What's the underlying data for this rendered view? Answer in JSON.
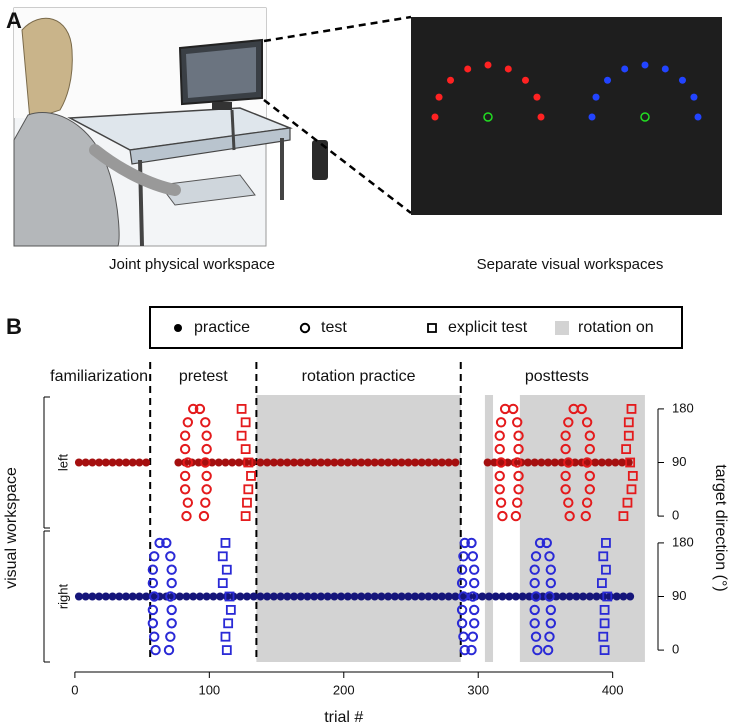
{
  "panel_a": {
    "label": "A",
    "left_caption": "Joint physical workspace",
    "right_caption": "Separate visual workspaces"
  },
  "chart_data": {
    "type": "scatter",
    "panel_label": "B",
    "xlabel": "trial #",
    "xlim": [
      -20,
      430
    ],
    "xticks": [
      0,
      100,
      200,
      300,
      400
    ],
    "ylabel_left": "visual workspace",
    "ylabel_right": "target direction (°)",
    "legend": [
      {
        "name": "practice",
        "marker": "dot"
      },
      {
        "name": "test",
        "marker": "circle"
      },
      {
        "name": "explicit test",
        "marker": "square"
      },
      {
        "name": "rotation on",
        "marker": "shade"
      }
    ],
    "shade_color": "#d3d3d3",
    "phases": [
      "familiarization",
      "pretest",
      "rotation practice",
      "posttests"
    ],
    "phase_dividers": [
      56,
      135,
      287
    ],
    "rotation_on": [
      [
        135,
        287
      ],
      [
        305,
        311
      ],
      [
        331,
        424
      ]
    ],
    "panels": [
      {
        "label": "left",
        "ylim": [
          -20,
          200
        ],
        "yticks": [
          0,
          90,
          180
        ],
        "series": [
          {
            "color": "#a50f0f",
            "x": [
              3,
              8,
              13,
              18,
              23,
              28,
              33,
              38,
              43,
              48,
              53,
              77,
              82,
              87,
              92,
              97,
              102,
              107,
              112,
              117,
              122,
              127,
              132,
              138,
              143,
              148,
              153,
              158,
              163,
              168,
              173,
              178,
              183,
              188,
              193,
              198,
              203,
              208,
              213,
              218,
              223,
              228,
              233,
              238,
              243,
              248,
              253,
              258,
              263,
              268,
              273,
              278,
              283,
              307,
              312,
              317,
              322,
              327,
              332,
              337,
              342,
              347,
              352,
              357,
              362,
              367,
              372,
              377,
              382,
              387,
              392,
              397,
              402,
              407,
              412
            ],
            "values": [
              90,
              90,
              90,
              90,
              90,
              90,
              90,
              90,
              90,
              90,
              90,
              90,
              90,
              90,
              90,
              90,
              90,
              90,
              90,
              90,
              90,
              90,
              90,
              90,
              90,
              90,
              90,
              90,
              90,
              90,
              90,
              90,
              90,
              90,
              90,
              90,
              90,
              90,
              90,
              90,
              90,
              90,
              90,
              90,
              90,
              90,
              90,
              90,
              90,
              90,
              90,
              90,
              90,
              90,
              90,
              90,
              90,
              90,
              90,
              90,
              90,
              90,
              90,
              90,
              90,
              90,
              90,
              90,
              90,
              90,
              90,
              90,
              90,
              90,
              90
            ]
          },
          {
            "color": "#e41a1c",
            "x": [
              88,
              93,
              84,
              97,
              82,
              98,
              82,
              98,
              84,
              97,
              82,
              98,
              82,
              98,
              84,
              97,
              83,
              96,
              320,
              326,
              317,
              329,
              316,
              330,
              316,
              330,
              317,
              329,
              316,
              330,
              316,
              330,
              317,
              329,
              318,
              328,
              371,
              377,
              367,
              381,
              365,
              383,
              365,
              383,
              367,
              381,
              365,
              383,
              365,
              383,
              367,
              381,
              368,
              380
            ],
            "values": [
              180,
              180,
              157.5,
              157.5,
              135,
              135,
              112.5,
              112.5,
              90,
              90,
              67.5,
              67.5,
              45,
              45,
              22.5,
              22.5,
              0,
              0,
              180,
              180,
              157.5,
              157.5,
              135,
              135,
              112.5,
              112.5,
              90,
              90,
              67.5,
              67.5,
              45,
              45,
              22.5,
              22.5,
              0,
              0,
              180,
              180,
              157.5,
              157.5,
              135,
              135,
              112.5,
              112.5,
              90,
              90,
              67.5,
              67.5,
              45,
              45,
              22.5,
              22.5,
              0,
              0
            ]
          },
          {
            "color": "#e41a1c",
            "x": [
              124,
              127,
              124,
              127,
              129,
              131,
              129,
              128,
              127,
              414,
              412,
              412,
              410,
              413,
              415,
              414,
              411,
              408
            ],
            "values": [
              180,
              157.5,
              135,
              112.5,
              90,
              67.5,
              45,
              22.5,
              0,
              180,
              157.5,
              135,
              112.5,
              90,
              67.5,
              45,
              22.5,
              0
            ]
          }
        ]
      },
      {
        "label": "right",
        "ylim": [
          -20,
          200
        ],
        "yticks": [
          0,
          90,
          180
        ],
        "series": [
          {
            "color": "#15157a",
            "x": [
              3,
              8,
              13,
              18,
              23,
              28,
              33,
              38,
              43,
              48,
              53,
              58,
              63,
              68,
              73,
              78,
              83,
              88,
              93,
              98,
              103,
              108,
              113,
              118,
              123,
              128,
              133,
              138,
              143,
              148,
              153,
              158,
              163,
              168,
              173,
              178,
              183,
              188,
              193,
              198,
              203,
              208,
              213,
              218,
              223,
              228,
              233,
              238,
              243,
              248,
              253,
              258,
              263,
              268,
              273,
              278,
              283,
              288,
              293,
              298,
              303,
              308,
              313,
              318,
              323,
              328,
              333,
              338,
              343,
              348,
              353,
              358,
              363,
              368,
              373,
              378,
              383,
              388,
              393,
              398,
              403,
              408,
              413
            ],
            "values": [
              90,
              90,
              90,
              90,
              90,
              90,
              90,
              90,
              90,
              90,
              90,
              90,
              90,
              90,
              90,
              90,
              90,
              90,
              90,
              90,
              90,
              90,
              90,
              90,
              90,
              90,
              90,
              90,
              90,
              90,
              90,
              90,
              90,
              90,
              90,
              90,
              90,
              90,
              90,
              90,
              90,
              90,
              90,
              90,
              90,
              90,
              90,
              90,
              90,
              90,
              90,
              90,
              90,
              90,
              90,
              90,
              90,
              90,
              90,
              90,
              90,
              90,
              90,
              90,
              90,
              90,
              90,
              90,
              90,
              90,
              90,
              90,
              90,
              90,
              90,
              90,
              90,
              90,
              90,
              90,
              90,
              90,
              90
            ]
          },
          {
            "color": "#2a2ad6",
            "x": [
              63,
              68,
              59,
              71,
              58,
              72,
              58,
              72,
              59,
              71,
              58,
              72,
              58,
              72,
              59,
              71,
              60,
              70,
              290,
              295,
              289,
              296,
              288,
              297,
              288,
              297,
              289,
              296,
              288,
              297,
              288,
              297,
              289,
              296,
              290,
              295,
              346,
              351,
              343,
              353,
              342,
              354,
              342,
              354,
              343,
              353,
              342,
              354,
              342,
              354,
              343,
              353,
              344,
              352
            ],
            "values": [
              180,
              180,
              157.5,
              157.5,
              135,
              135,
              112.5,
              112.5,
              90,
              90,
              67.5,
              67.5,
              45,
              45,
              22.5,
              22.5,
              0,
              0,
              180,
              180,
              157.5,
              157.5,
              135,
              135,
              112.5,
              112.5,
              90,
              90,
              67.5,
              67.5,
              45,
              45,
              22.5,
              22.5,
              0,
              0,
              180,
              180,
              157.5,
              157.5,
              135,
              135,
              112.5,
              112.5,
              90,
              90,
              67.5,
              67.5,
              45,
              45,
              22.5,
              22.5,
              0,
              0
            ]
          },
          {
            "color": "#2a2ad6",
            "x": [
              112,
              110,
              113,
              110,
              115,
              116,
              114,
              112,
              113,
              395,
              393,
              395,
              392,
              396,
              394,
              394,
              393,
              394
            ],
            "values": [
              180,
              157.5,
              135,
              112.5,
              90,
              67.5,
              45,
              22.5,
              0,
              180,
              157.5,
              135,
              112.5,
              90,
              67.5,
              45,
              22.5,
              0
            ]
          }
        ]
      }
    ]
  }
}
